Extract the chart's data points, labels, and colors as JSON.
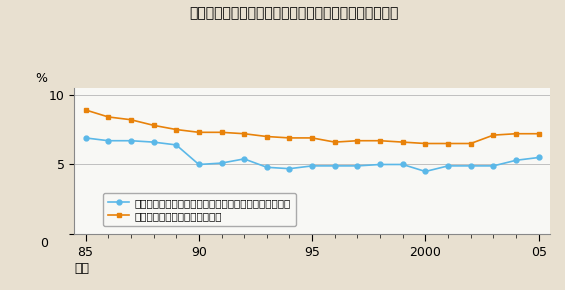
{
  "title": "図表２：空港整備特別会計の資産に対する収益率の推移",
  "xlabel": "年度",
  "ylabel": "%",
  "ylim": [
    0,
    10.5
  ],
  "yticks": [
    0,
    5,
    10
  ],
  "background_color": "#e8e0d0",
  "plot_bg_color": "#f8f8f5",
  "x_indices": [
    0,
    1,
    2,
    3,
    4,
    5,
    6,
    7,
    8,
    9,
    10,
    11,
    12,
    13,
    14,
    15,
    16,
    17,
    18,
    19,
    20
  ],
  "xtick_positions": [
    0,
    5,
    10,
    15,
    20
  ],
  "xtick_labels": [
    "85",
    "90",
    "95",
    "2000",
    "05"
  ],
  "series1": {
    "label": "空港使用料収入／（インフラ資産＋その他の行政財産）",
    "color": "#5bb8e8",
    "marker": "o",
    "values": [
      6.9,
      6.7,
      6.7,
      6.6,
      6.4,
      5.0,
      5.1,
      5.4,
      4.8,
      4.7,
      4.9,
      4.9,
      4.9,
      5.0,
      5.0,
      4.5,
      4.9,
      4.9,
      4.9,
      5.3,
      5.5
    ]
  },
  "series2": {
    "label": "空港使用料収入／インフラ資産",
    "color": "#e8820a",
    "marker": "s",
    "values": [
      8.9,
      8.4,
      8.2,
      7.8,
      7.5,
      7.3,
      7.3,
      7.2,
      7.0,
      6.9,
      6.9,
      6.6,
      6.7,
      6.7,
      6.6,
      6.5,
      6.5,
      6.5,
      7.1,
      7.2,
      7.2
    ]
  }
}
